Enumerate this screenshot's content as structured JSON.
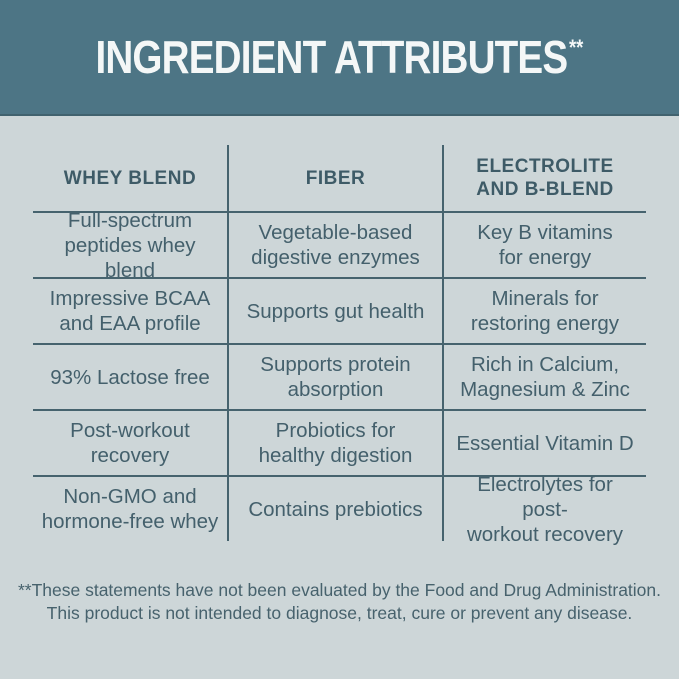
{
  "colors": {
    "band_background": "#4d7585",
    "page_background": "#cdd6d8",
    "text": "#3e5b67",
    "rule_lines": "#46636e",
    "title_text": "#f4f7f7"
  },
  "header": {
    "title": "INGREDIENT ATTRIBUTES",
    "title_marks": "**"
  },
  "table": {
    "columns": [
      [
        "WHEY BLEND"
      ],
      [
        "FIBER"
      ],
      [
        "ELECTROLITE",
        "AND B-BLEND"
      ]
    ],
    "rows": [
      {
        "cells": [
          [
            "Full-spectrum",
            "peptides whey blend"
          ],
          [
            "Vegetable-based",
            "digestive enzymes"
          ],
          [
            "Key B vitamins",
            "for energy"
          ]
        ]
      },
      {
        "cells": [
          [
            "Impressive BCAA",
            "and EAA profile"
          ],
          [
            "Supports gut health"
          ],
          [
            "Minerals for",
            "restoring energy"
          ]
        ]
      },
      {
        "cells": [
          [
            "93% Lactose free"
          ],
          [
            "Supports protein",
            "absorption"
          ],
          [
            "Rich in Calcium,",
            "Magnesium & Zinc"
          ]
        ]
      },
      {
        "cells": [
          [
            "Post-workout",
            "recovery"
          ],
          [
            "Probiotics for",
            "healthy digestion"
          ],
          [
            "Essential Vitamin D"
          ]
        ]
      },
      {
        "cells": [
          [
            "Non-GMO and",
            "hormone-free whey"
          ],
          [
            "Contains prebiotics"
          ],
          [
            "Electrolytes for post-",
            "workout recovery"
          ]
        ]
      }
    ]
  },
  "footer": {
    "disclaimer": [
      "**These statements have not been evaluated by the Food and Drug Administration.",
      "This product is not intended to diagnose, treat, cure or prevent any disease."
    ]
  }
}
